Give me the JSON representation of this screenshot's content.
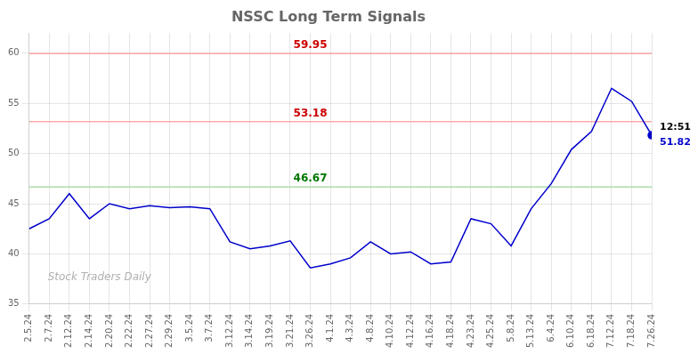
{
  "chart_data": {
    "type": "line",
    "title": "NSSC Long Term Signals",
    "watermark": "Stock Traders Daily",
    "categories": [
      "2.5.24",
      "2.7.24",
      "2.12.24",
      "2.14.24",
      "2.20.24",
      "2.22.24",
      "2.27.24",
      "2.29.24",
      "3.5.24",
      "3.7.24",
      "3.12.24",
      "3.14.24",
      "3.19.24",
      "3.21.24",
      "3.26.24",
      "4.1.24",
      "4.3.24",
      "4.8.24",
      "4.10.24",
      "4.12.24",
      "4.16.24",
      "4.18.24",
      "4.23.24",
      "4.25.24",
      "5.8.24",
      "5.13.24",
      "6.4.24",
      "6.10.24",
      "6.18.24",
      "7.12.24",
      "7.18.24",
      "7.26.24"
    ],
    "values": [
      42.5,
      43.5,
      46.0,
      43.5,
      45.0,
      44.5,
      44.8,
      44.6,
      44.7,
      44.5,
      41.2,
      40.5,
      40.8,
      41.3,
      38.6,
      39.0,
      39.6,
      41.2,
      40.0,
      40.2,
      39.0,
      39.2,
      43.5,
      43.0,
      40.8,
      44.5,
      47.0,
      50.4,
      52.2,
      56.5,
      55.2,
      51.82
    ],
    "color": "#0000cc",
    "hlines": [
      {
        "value": 59.95,
        "label": "59.95",
        "color": "#ffaaaa",
        "label_color": "#cc0000"
      },
      {
        "value": 53.18,
        "label": "53.18",
        "color": "#ffaaaa",
        "label_color": "#cc0000"
      },
      {
        "value": 46.67,
        "label": "46.67",
        "color": "#aaddaa",
        "label_color": "#007700"
      }
    ],
    "last_point": {
      "value": 51.82,
      "label": "51.82",
      "time": "12:51",
      "color": "#0000cc"
    },
    "ylim": [
      35,
      62
    ],
    "yticks": [
      35,
      40,
      45,
      50,
      55,
      60
    ],
    "grid": true
  }
}
